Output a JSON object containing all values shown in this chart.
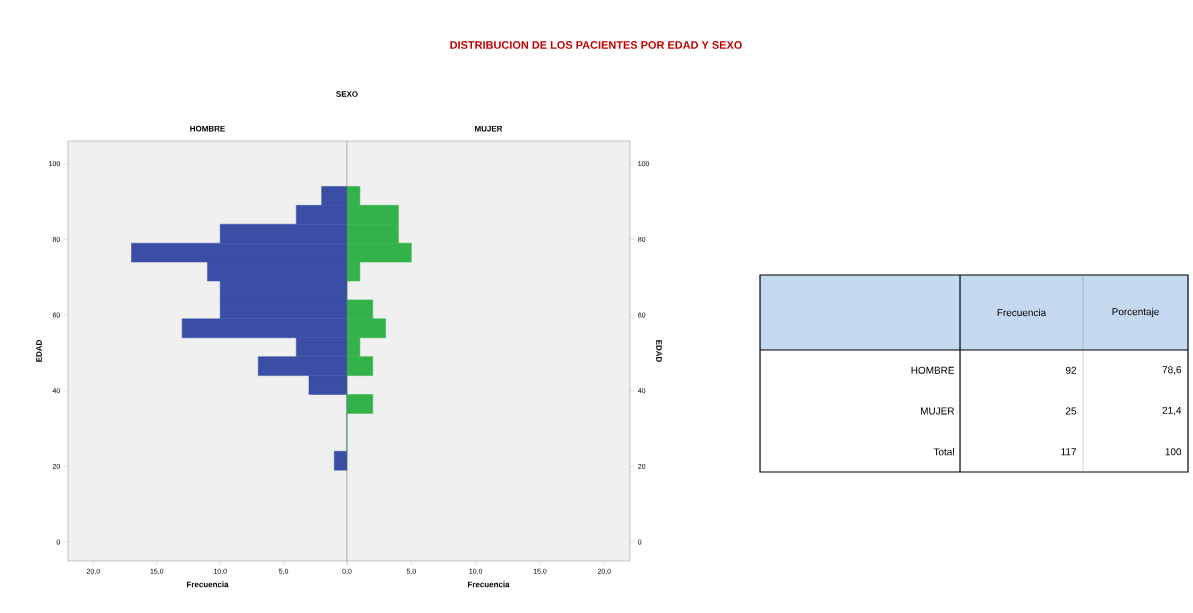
{
  "chart_data": [
    {
      "type": "histogram",
      "title": "HOMBRE",
      "annotations": [
        "DISTRIBUCION DE LOS PACIENTES POR EDAD Y SEXO",
        "SEXO"
      ],
      "orientation": "horizontal",
      "bins": [
        19,
        24,
        29,
        34,
        39,
        44,
        49,
        54,
        59,
        64,
        69,
        74,
        79,
        84,
        89,
        94
      ],
      "values": [
        1,
        0,
        0,
        0,
        3,
        7,
        4,
        13,
        10,
        10,
        11,
        17,
        10,
        4,
        2
      ],
      "color": "#3a4ea6",
      "xlim": [
        22,
        0
      ],
      "xticks": [
        {
          "value": 20,
          "label": "20,0"
        },
        {
          "value": 15,
          "label": "15,0"
        },
        {
          "value": 10,
          "label": "10,0"
        },
        {
          "value": 5,
          "label": "5,0"
        },
        {
          "value": 0,
          "label": "0,0"
        }
      ],
      "ylim": [
        -5,
        106
      ],
      "yticks": [
        0,
        20,
        40,
        60,
        80,
        100
      ],
      "xlabel": "Frecuencia",
      "ylabel": "EDAD"
    },
    {
      "type": "histogram",
      "title": "MUJER",
      "orientation": "horizontal",
      "bins": [
        19,
        24,
        29,
        34,
        39,
        44,
        49,
        54,
        59,
        64,
        69,
        74,
        79,
        84,
        89,
        94
      ],
      "values": [
        0,
        0,
        0,
        2,
        0,
        2,
        1,
        3,
        2,
        0,
        1,
        5,
        4,
        4,
        1
      ],
      "color": "#33b24a",
      "xlim": [
        0,
        22
      ],
      "xticks": [
        {
          "value": 0,
          "label": null
        },
        {
          "value": 5,
          "label": "5,0"
        },
        {
          "value": 10,
          "label": "10,0"
        },
        {
          "value": 15,
          "label": "15,0"
        },
        {
          "value": 20,
          "label": "20,0"
        }
      ],
      "ylim": [
        -5,
        106
      ],
      "yticks": [
        0,
        20,
        40,
        60,
        80,
        100
      ],
      "xlabel": "Frecuencia",
      "ylabel": "EDAD"
    },
    {
      "type": "other",
      "categories": [
        "Frecuencia",
        "Porcentaje"
      ],
      "y_categories": [
        "HOMBRE",
        "MUJER",
        "Total"
      ],
      "cell_labels": [
        [
          "92",
          "78,6"
        ],
        [
          "25",
          "21,4"
        ],
        [
          "117",
          "100"
        ]
      ]
    }
  ]
}
